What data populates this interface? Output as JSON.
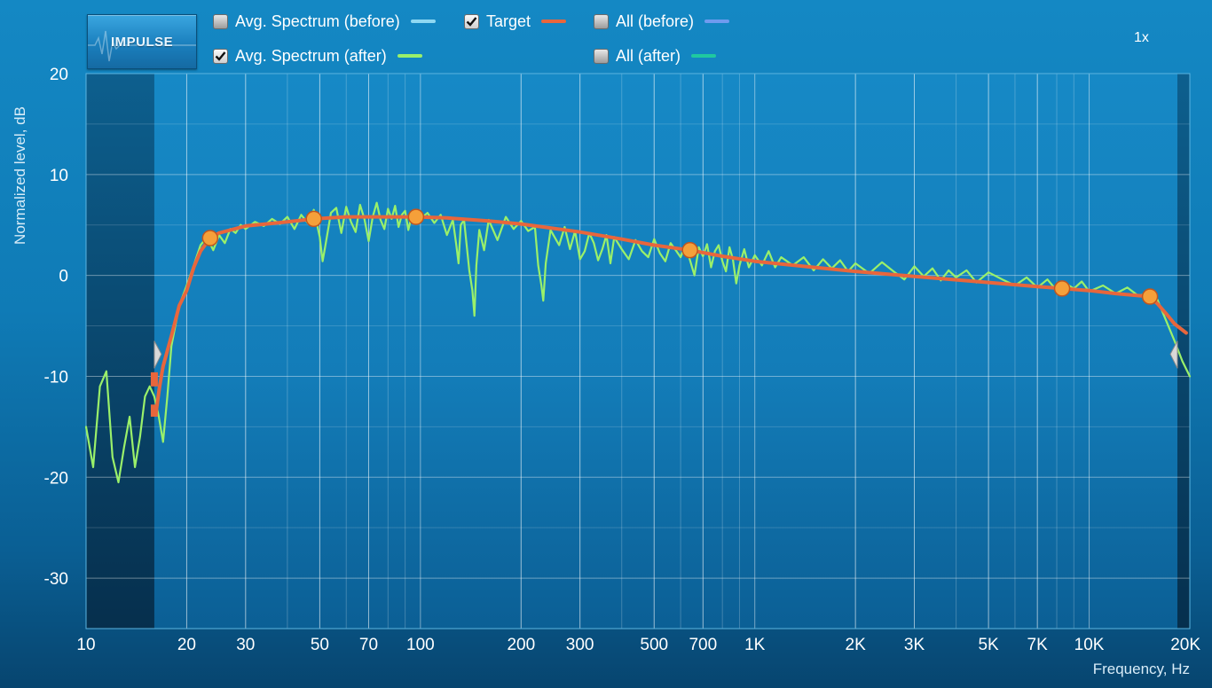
{
  "impulse_button": {
    "label": "IMPULSE"
  },
  "zoom": {
    "label": "1x"
  },
  "legend": [
    {
      "label": "Avg. Spectrum (before)",
      "checked": false,
      "color": "#8fd8f2"
    },
    {
      "label": "Target",
      "checked": true,
      "color": "#e8663c"
    },
    {
      "label": "All (before)",
      "checked": false,
      "color": "#6f9bef"
    },
    {
      "label": "Avg. Spectrum (after)",
      "checked": true,
      "color": "#9af06a"
    },
    {
      "label": "All (after)",
      "checked": false,
      "color": "#1fc9a0"
    }
  ],
  "chart_data": {
    "type": "line",
    "xlabel": "Frequency, Hz",
    "ylabel": "Normalized level, dB",
    "x_scale": "log",
    "xlim": [
      10,
      20000
    ],
    "ylim": [
      -35,
      20
    ],
    "grid": true,
    "x_ticks": [
      {
        "value": 10,
        "label": "10"
      },
      {
        "value": 20,
        "label": "20"
      },
      {
        "value": 30,
        "label": "30"
      },
      {
        "value": 50,
        "label": "50"
      },
      {
        "value": 70,
        "label": "70"
      },
      {
        "value": 100,
        "label": "100"
      },
      {
        "value": 200,
        "label": "200"
      },
      {
        "value": 300,
        "label": "300"
      },
      {
        "value": 500,
        "label": "500"
      },
      {
        "value": 700,
        "label": "700"
      },
      {
        "value": 1000,
        "label": "1K"
      },
      {
        "value": 2000,
        "label": "2K"
      },
      {
        "value": 3000,
        "label": "3K"
      },
      {
        "value": 5000,
        "label": "5K"
      },
      {
        "value": 7000,
        "label": "7K"
      },
      {
        "value": 10000,
        "label": "10K"
      },
      {
        "value": 20000,
        "label": "20K"
      }
    ],
    "y_ticks": [
      {
        "value": 20,
        "label": "20"
      },
      {
        "value": 10,
        "label": "10"
      },
      {
        "value": 0,
        "label": "0"
      },
      {
        "value": -10,
        "label": "-10"
      },
      {
        "value": -20,
        "label": "-20"
      },
      {
        "value": -30,
        "label": "-30"
      }
    ],
    "excluded_low_range_hz": [
      10,
      16
    ],
    "series": [
      {
        "name": "Avg. Spectrum (after)",
        "color": "#9af06a",
        "points": [
          [
            10,
            -15
          ],
          [
            10.5,
            -19
          ],
          [
            11,
            -11
          ],
          [
            11.5,
            -9.5
          ],
          [
            12,
            -18
          ],
          [
            12.5,
            -20.5
          ],
          [
            13,
            -17
          ],
          [
            13.5,
            -14
          ],
          [
            14,
            -19
          ],
          [
            14.5,
            -16
          ],
          [
            15,
            -12
          ],
          [
            15.5,
            -11
          ],
          [
            16,
            -12
          ],
          [
            16.5,
            -14
          ],
          [
            17,
            -16.5
          ],
          [
            17.5,
            -12
          ],
          [
            18,
            -7
          ],
          [
            19,
            -3
          ],
          [
            20,
            -1
          ],
          [
            21,
            1
          ],
          [
            22,
            3
          ],
          [
            23,
            3.8
          ],
          [
            24,
            2.5
          ],
          [
            25,
            4
          ],
          [
            26,
            3.2
          ],
          [
            27,
            4.6
          ],
          [
            28,
            4.2
          ],
          [
            29,
            5
          ],
          [
            30,
            4.6
          ],
          [
            32,
            5.3
          ],
          [
            34,
            4.9
          ],
          [
            36,
            5.6
          ],
          [
            38,
            5.1
          ],
          [
            40,
            5.8
          ],
          [
            42,
            4.6
          ],
          [
            44,
            6
          ],
          [
            46,
            5.2
          ],
          [
            48,
            6.5
          ],
          [
            50,
            3.8
          ],
          [
            51,
            1.4
          ],
          [
            52,
            3
          ],
          [
            54,
            6.2
          ],
          [
            56,
            6.7
          ],
          [
            58,
            4.2
          ],
          [
            60,
            6.8
          ],
          [
            62,
            5.3
          ],
          [
            64,
            4.3
          ],
          [
            66,
            7
          ],
          [
            68,
            5.6
          ],
          [
            70,
            3.4
          ],
          [
            72,
            5.8
          ],
          [
            74,
            7.2
          ],
          [
            76,
            5.5
          ],
          [
            78,
            4.6
          ],
          [
            80,
            6.6
          ],
          [
            82,
            5.6
          ],
          [
            84,
            6.9
          ],
          [
            86,
            4.8
          ],
          [
            88,
            6
          ],
          [
            90,
            6.4
          ],
          [
            92,
            4.5
          ],
          [
            94,
            5.8
          ],
          [
            96,
            6.5
          ],
          [
            100,
            5.6
          ],
          [
            105,
            6.2
          ],
          [
            110,
            5.2
          ],
          [
            115,
            6
          ],
          [
            120,
            4
          ],
          [
            125,
            5.5
          ],
          [
            128,
            3
          ],
          [
            130,
            1.2
          ],
          [
            132,
            5
          ],
          [
            135,
            5.5
          ],
          [
            140,
            0.5
          ],
          [
            143,
            -1.5
          ],
          [
            145,
            -4
          ],
          [
            147,
            1
          ],
          [
            150,
            4.5
          ],
          [
            155,
            2.5
          ],
          [
            160,
            5.5
          ],
          [
            170,
            3.5
          ],
          [
            180,
            5.8
          ],
          [
            190,
            4.6
          ],
          [
            200,
            5.4
          ],
          [
            210,
            4.4
          ],
          [
            220,
            4.8
          ],
          [
            225,
            1
          ],
          [
            230,
            -1
          ],
          [
            233,
            -2.5
          ],
          [
            237,
            1.2
          ],
          [
            245,
            4.5
          ],
          [
            260,
            3
          ],
          [
            270,
            4.8
          ],
          [
            280,
            2.6
          ],
          [
            290,
            4.4
          ],
          [
            300,
            1.6
          ],
          [
            310,
            2.4
          ],
          [
            320,
            4.2
          ],
          [
            330,
            3.2
          ],
          [
            340,
            1.5
          ],
          [
            350,
            2.6
          ],
          [
            360,
            4
          ],
          [
            370,
            1.2
          ],
          [
            380,
            3.8
          ],
          [
            400,
            2.6
          ],
          [
            420,
            1.6
          ],
          [
            440,
            3.5
          ],
          [
            460,
            2.4
          ],
          [
            480,
            1.8
          ],
          [
            500,
            3.6
          ],
          [
            520,
            2.2
          ],
          [
            540,
            1.4
          ],
          [
            560,
            3.2
          ],
          [
            580,
            2.5
          ],
          [
            600,
            1.8
          ],
          [
            620,
            3
          ],
          [
            640,
            1.5
          ],
          [
            660,
            0
          ],
          [
            680,
            2.8
          ],
          [
            700,
            1.9
          ],
          [
            720,
            3.1
          ],
          [
            740,
            0.8
          ],
          [
            760,
            2.4
          ],
          [
            780,
            3
          ],
          [
            800,
            1.4
          ],
          [
            820,
            0.4
          ],
          [
            840,
            2.8
          ],
          [
            860,
            1.6
          ],
          [
            880,
            -0.8
          ],
          [
            900,
            1
          ],
          [
            930,
            2.6
          ],
          [
            960,
            0.8
          ],
          [
            1000,
            2
          ],
          [
            1050,
            1
          ],
          [
            1100,
            2.4
          ],
          [
            1150,
            0.8
          ],
          [
            1200,
            1.8
          ],
          [
            1300,
            1
          ],
          [
            1400,
            1.8
          ],
          [
            1500,
            0.5
          ],
          [
            1600,
            1.6
          ],
          [
            1700,
            0.7
          ],
          [
            1800,
            1.5
          ],
          [
            1900,
            0.4
          ],
          [
            2000,
            1.2
          ],
          [
            2200,
            0.2
          ],
          [
            2400,
            1.3
          ],
          [
            2600,
            0.4
          ],
          [
            2800,
            -0.4
          ],
          [
            3000,
            0.9
          ],
          [
            3200,
            -0.1
          ],
          [
            3400,
            0.7
          ],
          [
            3600,
            -0.5
          ],
          [
            3800,
            0.5
          ],
          [
            4000,
            -0.2
          ],
          [
            4300,
            0.5
          ],
          [
            4600,
            -0.7
          ],
          [
            5000,
            0.3
          ],
          [
            5500,
            -0.4
          ],
          [
            6000,
            -1
          ],
          [
            6500,
            -0.2
          ],
          [
            7000,
            -1.2
          ],
          [
            7500,
            -0.4
          ],
          [
            8000,
            -1.5
          ],
          [
            8500,
            -0.8
          ],
          [
            9000,
            -1.3
          ],
          [
            9500,
            -0.6
          ],
          [
            10000,
            -1.6
          ],
          [
            11000,
            -1
          ],
          [
            12000,
            -1.8
          ],
          [
            13000,
            -1.2
          ],
          [
            14000,
            -2
          ],
          [
            15000,
            -1.8
          ],
          [
            16000,
            -2.4
          ],
          [
            17000,
            -4.5
          ],
          [
            18000,
            -6.5
          ],
          [
            19000,
            -8.5
          ],
          [
            20000,
            -10
          ]
        ]
      },
      {
        "name": "Target",
        "color": "#e8663c",
        "points": [
          [
            16.2,
            -13.5
          ],
          [
            16.6,
            -11
          ],
          [
            17,
            -9
          ],
          [
            18,
            -6
          ],
          [
            19,
            -3
          ],
          [
            20,
            -1.5
          ],
          [
            21,
            0.8
          ],
          [
            22,
            2.4
          ],
          [
            23.5,
            3.7
          ],
          [
            25,
            4.2
          ],
          [
            30,
            4.9
          ],
          [
            40,
            5.3
          ],
          [
            48,
            5.6
          ],
          [
            60,
            5.8
          ],
          [
            80,
            5.8
          ],
          [
            97,
            5.8
          ],
          [
            120,
            5.7
          ],
          [
            160,
            5.4
          ],
          [
            200,
            5.1
          ],
          [
            300,
            4.3
          ],
          [
            400,
            3.6
          ],
          [
            500,
            3
          ],
          [
            640,
            2.5
          ],
          [
            800,
            1.9
          ],
          [
            1000,
            1.4
          ],
          [
            1500,
            0.8
          ],
          [
            2000,
            0.4
          ],
          [
            3000,
            -0.1
          ],
          [
            5000,
            -0.7
          ],
          [
            7000,
            -1.1
          ],
          [
            8300,
            -1.3
          ],
          [
            10000,
            -1.5
          ],
          [
            12000,
            -1.8
          ],
          [
            14000,
            -2
          ],
          [
            15200,
            -2.1
          ],
          [
            16000,
            -2.8
          ],
          [
            17000,
            -3.8
          ],
          [
            18000,
            -4.8
          ],
          [
            19500,
            -5.7
          ]
        ]
      }
    ],
    "target_control_points": [
      [
        23.5,
        3.7
      ],
      [
        48,
        5.6
      ],
      [
        97,
        5.8
      ],
      [
        640,
        2.5
      ],
      [
        8300,
        -1.3
      ],
      [
        15200,
        -2.1
      ]
    ]
  }
}
